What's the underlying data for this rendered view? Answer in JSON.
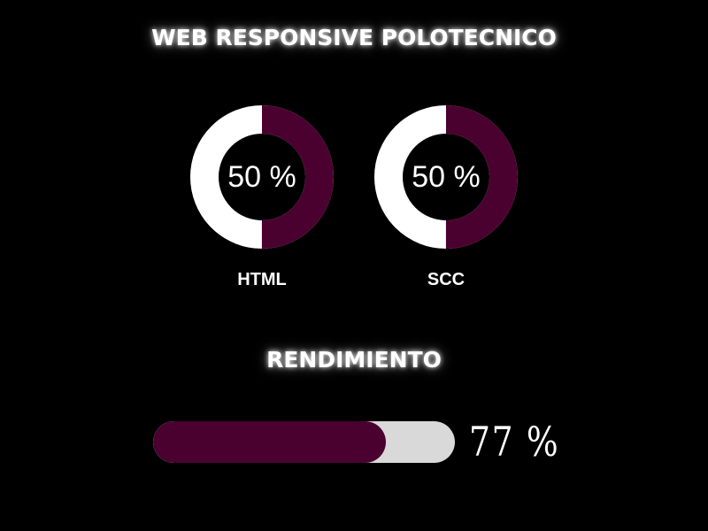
{
  "header": {
    "title": "WEB RESPONSIVE POLOTECNICO"
  },
  "skills": [
    {
      "label": "HTML",
      "value_text": "50 %",
      "fraction": 0.5
    },
    {
      "label": "SCC",
      "value_text": "50 %",
      "fraction": 0.5
    }
  ],
  "performance": {
    "title": "RENDIMIENTO",
    "value_text": "77 %",
    "fraction": 0.77
  },
  "colors": {
    "background": "#000000",
    "accent": "#4b0130",
    "ring_base": "#ffffff",
    "track": "#d9d9d9",
    "text": "#ffffff"
  }
}
